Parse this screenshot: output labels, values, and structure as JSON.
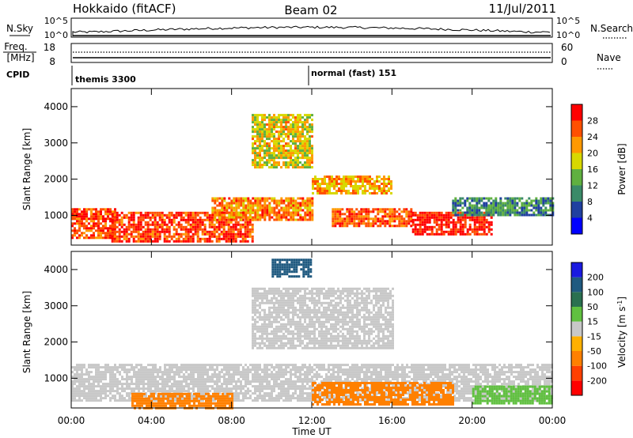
{
  "header": {
    "station": "Hokkaido (fitACF)",
    "beam": "Beam 02",
    "date": "11/Jul/2011"
  },
  "top_panels": {
    "nsky_label": "N.Sky",
    "nsky_ticks": [
      "10^5",
      "10^0"
    ],
    "nsearch_label": "N.Search",
    "nsearch_ticks": [
      "10^5",
      "10^0"
    ],
    "freq_label": "Freq.",
    "freq_unit": "[MHz]",
    "freq_ticks": [
      "18",
      "8"
    ],
    "nave_label": "Nave",
    "nave_ticks": [
      "60",
      "0"
    ],
    "cpid_label": "CPID",
    "cpid_segments": [
      {
        "label": "themis 3300",
        "start_hour": 0
      },
      {
        "label": "normal (fast) 151",
        "start_hour": 12
      }
    ]
  },
  "colors": {
    "power": [
      "#0000ff",
      "#2040a0",
      "#3a8a68",
      "#60b040",
      "#d8d800",
      "#ff9900",
      "#ff5000",
      "#ff0000"
    ],
    "velocity": [
      "#1a1ae0",
      "#205a80",
      "#2a7050",
      "#60c040",
      "#c8c8c8",
      "#ffb000",
      "#ff8000",
      "#ff4000",
      "#ff0000"
    ],
    "gray": "#c8c8c8"
  },
  "chart_data": [
    {
      "type": "heatmap",
      "title": "",
      "xlabel": "",
      "ylabel": "Slant Range [km]",
      "x_ticks": [
        "00:00",
        "04:00",
        "08:00",
        "12:00",
        "16:00",
        "20:00",
        "00:00"
      ],
      "xlim_hours": [
        0,
        24
      ],
      "y_ticks": [
        1000,
        2000,
        3000,
        4000
      ],
      "ylim": [
        180,
        4500
      ],
      "colorbar_label": "Power [dB]",
      "colorbar_ticks": [
        4,
        8,
        12,
        16,
        20,
        24,
        28
      ],
      "colorbar_range": [
        0,
        30
      ],
      "regions": [
        {
          "x": [
            0,
            2.2
          ],
          "y": [
            400,
            1200
          ],
          "value": 25
        },
        {
          "x": [
            2,
            9
          ],
          "y": [
            300,
            1100
          ],
          "value": 26
        },
        {
          "x": [
            7,
            12
          ],
          "y": [
            900,
            1500
          ],
          "value": 22
        },
        {
          "x": [
            9,
            12
          ],
          "y": [
            2300,
            3800
          ],
          "value": 18
        },
        {
          "x": [
            12,
            16
          ],
          "y": [
            1600,
            2100
          ],
          "value": 20
        },
        {
          "x": [
            13,
            17
          ],
          "y": [
            700,
            1200
          ],
          "value": 24
        },
        {
          "x": [
            17,
            21
          ],
          "y": [
            500,
            1100
          ],
          "value": 28
        },
        {
          "x": [
            19,
            24
          ],
          "y": [
            1000,
            1500
          ],
          "value": 10
        }
      ]
    },
    {
      "type": "heatmap",
      "title": "",
      "xlabel": "Time UT",
      "ylabel": "Slant Range [km]",
      "x_ticks": [
        "00:00",
        "04:00",
        "08:00",
        "12:00",
        "16:00",
        "20:00",
        "00:00"
      ],
      "xlim_hours": [
        0,
        24
      ],
      "y_ticks": [
        1000,
        2000,
        3000,
        4000
      ],
      "ylim": [
        180,
        4500
      ],
      "colorbar_label": "Velocity [m s^-1]",
      "colorbar_ticks": [
        "200",
        "100",
        "50",
        "15",
        "-15",
        "-50",
        "-100",
        "-200"
      ],
      "regions": [
        {
          "x": [
            0,
            24
          ],
          "y": [
            400,
            1400
          ],
          "value": 0
        },
        {
          "x": [
            9,
            16
          ],
          "y": [
            1800,
            3500
          ],
          "value": 0
        },
        {
          "x": [
            3,
            8
          ],
          "y": [
            200,
            600
          ],
          "value": -60
        },
        {
          "x": [
            12,
            19
          ],
          "y": [
            300,
            900
          ],
          "value": -70
        },
        {
          "x": [
            20,
            24
          ],
          "y": [
            300,
            800
          ],
          "value": 40
        },
        {
          "x": [
            10,
            12
          ],
          "y": [
            3800,
            4300
          ],
          "value": 180
        }
      ]
    }
  ]
}
